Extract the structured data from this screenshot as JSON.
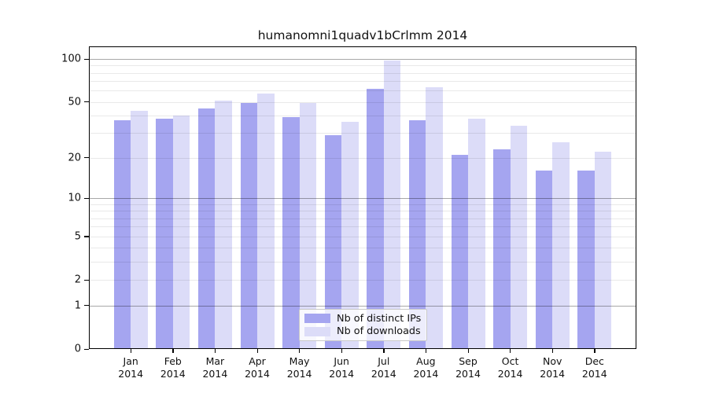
{
  "title": "humanomni1quadv1bCrlmm 2014",
  "chart_data": {
    "type": "bar",
    "title": "humanomni1quadv1bCrlmm 2014",
    "categories": [
      "Jan",
      "Feb",
      "Mar",
      "Apr",
      "May",
      "Jun",
      "Jul",
      "Aug",
      "Sep",
      "Oct",
      "Nov",
      "Dec"
    ],
    "year": "2014",
    "series": [
      {
        "name": "Nb of distinct IPs",
        "color": "#a5a5f0",
        "values": [
          37,
          38,
          45,
          49,
          39,
          29,
          62,
          37,
          21,
          23,
          16,
          16
        ]
      },
      {
        "name": "Nb of downloads",
        "color": "#dcdcf8",
        "values": [
          43,
          40,
          51,
          57,
          49,
          36,
          97,
          63,
          38,
          34,
          26,
          22
        ]
      }
    ],
    "yscale": "log1p",
    "ylim": [
      0,
      122
    ],
    "yticks": [
      100,
      50,
      20,
      10,
      5,
      2,
      1,
      0
    ],
    "grid": true,
    "grid_major_at": [
      1,
      10,
      100
    ],
    "legend_position": "lower center"
  }
}
